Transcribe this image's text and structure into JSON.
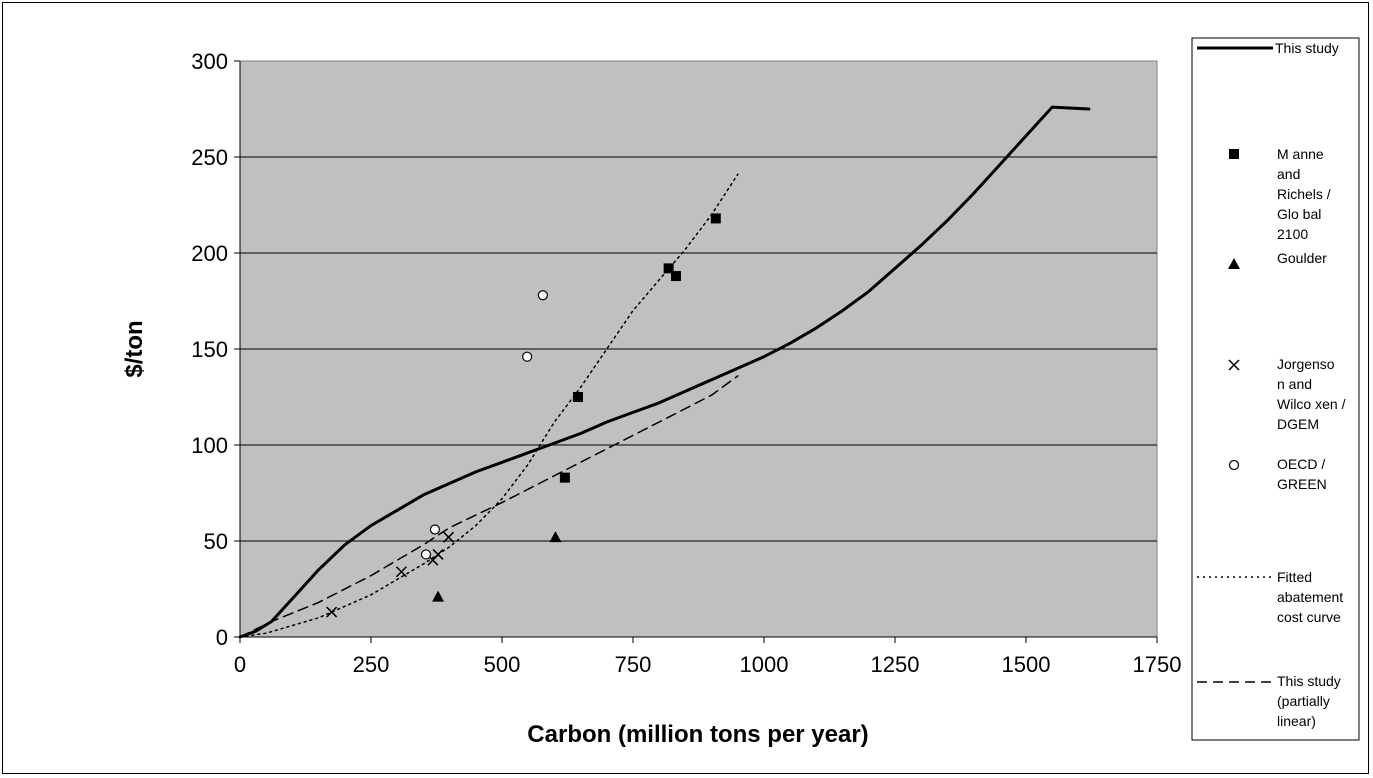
{
  "chart_data": {
    "type": "scatter",
    "xlabel": "Carbon (million tons per year)",
    "ylabel": "$/ton",
    "xlim": [
      0,
      1750
    ],
    "ylim": [
      0,
      300
    ],
    "x_ticks": [
      "0",
      "250",
      "500",
      "750",
      "1000",
      "1250",
      "1500",
      "1750"
    ],
    "y_ticks": [
      "0",
      "50",
      "100",
      "150",
      "200",
      "250",
      "300"
    ],
    "grid": "horizontal",
    "plot_background": "#c0c0c0",
    "legend_position": "right",
    "series": [
      {
        "name": "This study",
        "kind": "line",
        "style": "solid",
        "points": [
          [
            0,
            0
          ],
          [
            30,
            3
          ],
          [
            60,
            8
          ],
          [
            100,
            20
          ],
          [
            150,
            35
          ],
          [
            200,
            48
          ],
          [
            250,
            58
          ],
          [
            300,
            66
          ],
          [
            350,
            74
          ],
          [
            400,
            80
          ],
          [
            450,
            86
          ],
          [
            500,
            91
          ],
          [
            550,
            96
          ],
          [
            600,
            101
          ],
          [
            650,
            106
          ],
          [
            700,
            112
          ],
          [
            750,
            117
          ],
          [
            800,
            122
          ],
          [
            850,
            128
          ],
          [
            900,
            134
          ],
          [
            950,
            140
          ],
          [
            1000,
            146
          ],
          [
            1050,
            153
          ],
          [
            1100,
            161
          ],
          [
            1150,
            170
          ],
          [
            1200,
            180
          ],
          [
            1250,
            192
          ],
          [
            1300,
            204
          ],
          [
            1350,
            217
          ],
          [
            1400,
            231
          ],
          [
            1450,
            246
          ],
          [
            1500,
            261
          ],
          [
            1550,
            276
          ],
          [
            1620,
            275
          ]
        ]
      },
      {
        "name": "Manne and Richels / Global 2100",
        "kind": "marker",
        "marker": "square",
        "points": [
          [
            620,
            83
          ],
          [
            645,
            125
          ],
          [
            818,
            192
          ],
          [
            832,
            188
          ],
          [
            908,
            218
          ]
        ]
      },
      {
        "name": "Goulder",
        "kind": "marker",
        "marker": "triangle",
        "points": [
          [
            378,
            21
          ],
          [
            602,
            52
          ]
        ]
      },
      {
        "name": "Jorgenson and Wilcoxen / DGEM",
        "kind": "marker",
        "marker": "x",
        "points": [
          [
            175,
            13
          ],
          [
            308,
            34
          ],
          [
            368,
            40
          ],
          [
            378,
            43
          ],
          [
            398,
            52
          ]
        ]
      },
      {
        "name": "OECD / GREEN",
        "kind": "marker",
        "marker": "circle",
        "points": [
          [
            355,
            43
          ],
          [
            372,
            56
          ],
          [
            548,
            146
          ],
          [
            578,
            178
          ]
        ]
      },
      {
        "name": "Fitted abatement cost curve",
        "kind": "line",
        "style": "dotted",
        "points": [
          [
            0,
            0
          ],
          [
            50,
            2
          ],
          [
            100,
            6
          ],
          [
            150,
            10
          ],
          [
            200,
            16
          ],
          [
            250,
            22
          ],
          [
            300,
            30
          ],
          [
            350,
            38
          ],
          [
            400,
            47
          ],
          [
            450,
            58
          ],
          [
            500,
            72
          ],
          [
            550,
            90
          ],
          [
            600,
            112
          ],
          [
            650,
            130
          ],
          [
            700,
            150
          ],
          [
            750,
            170
          ],
          [
            800,
            186
          ],
          [
            850,
            202
          ],
          [
            900,
            220
          ],
          [
            950,
            241
          ]
        ]
      },
      {
        "name": "This study (partially linear)",
        "kind": "line",
        "style": "dashed",
        "points": [
          [
            0,
            0
          ],
          [
            60,
            8
          ],
          [
            150,
            18
          ],
          [
            250,
            32
          ],
          [
            350,
            48
          ],
          [
            400,
            57
          ],
          [
            500,
            70
          ],
          [
            600,
            84
          ],
          [
            700,
            98
          ],
          [
            800,
            112
          ],
          [
            900,
            126
          ],
          [
            950,
            136
          ]
        ]
      }
    ]
  },
  "legend": {
    "this_study": "This study",
    "manne_lines": [
      "M anne",
      "and",
      "Richels /",
      "Glo bal",
      "2100"
    ],
    "goulder": "Goulder",
    "jorgenson_lines": [
      "Jorgenso",
      "n and",
      "Wilco xen /",
      "DGEM"
    ],
    "oecd_lines": [
      "OECD /",
      "GREEN"
    ],
    "fitted_lines": [
      "Fitted",
      "abatement",
      "cost curve"
    ],
    "partial_lines": [
      "This study",
      "(partially",
      "linear)"
    ]
  }
}
